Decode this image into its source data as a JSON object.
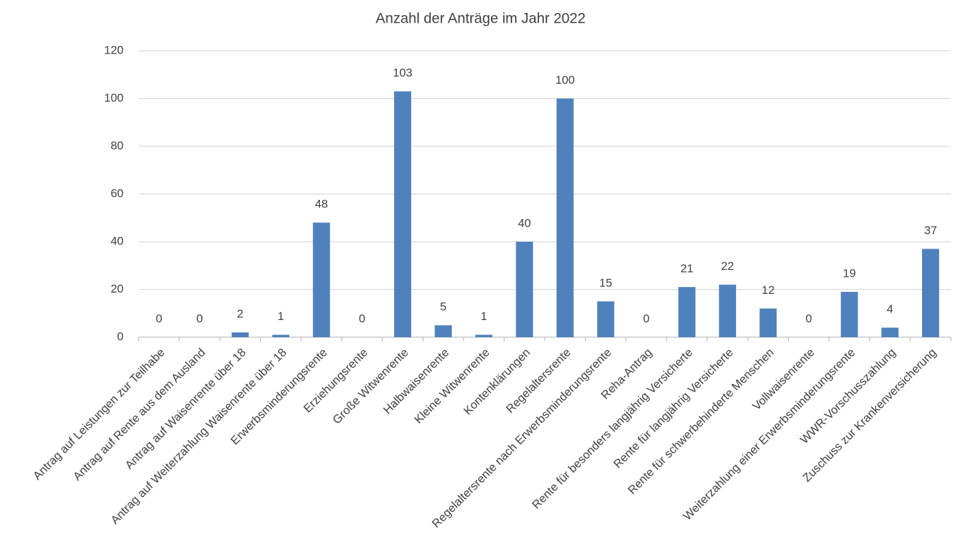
{
  "chart_data": {
    "type": "bar",
    "title": "Anzahl der Anträge im Jahr 2022",
    "categories": [
      "Antrag auf Leistungen zur Teilhabe",
      "Antrag auf Rente aus dem Ausland",
      "Antrag auf Waisenrente über 18",
      "Antrag auf Weiterzahlung Waisenrente über 18",
      "Erwerbsminderungsrente",
      "Erziehungsrente",
      "Große Witwenrente",
      "Halbwaisenrente",
      "Kleine Witwenrente",
      "Kontenklärungen",
      "Regelaltersrente",
      "Regelaltersrente nach Erwerbsminderungsrente",
      "Reha-Antrag",
      "Rente für besonders langjährig Versicherte",
      "Rente für langjährig Versicherte",
      "Rente für schwerbehinderte Menschen",
      "Vollwaisenrente",
      "Weiterzahlung einer Erwerbsminderungsrente",
      "WWR-Vorschusszahlung",
      "Zuschuss zur Krankenversicherung"
    ],
    "values": [
      0,
      0,
      2,
      1,
      48,
      0,
      103,
      5,
      1,
      40,
      100,
      15,
      0,
      21,
      22,
      12,
      0,
      19,
      4,
      37
    ],
    "color": "#4f81bd",
    "ylim": [
      0,
      120
    ],
    "yticks": [
      0,
      20,
      40,
      60,
      80,
      100,
      120
    ],
    "grid": true
  }
}
